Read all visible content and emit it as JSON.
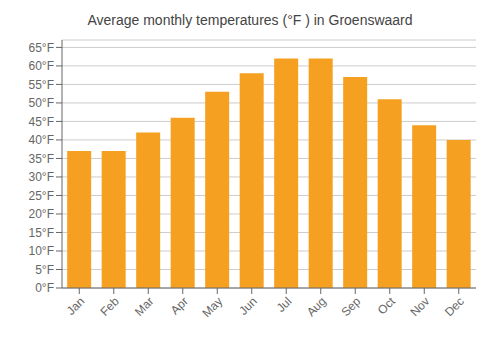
{
  "chart_data": {
    "type": "bar",
    "title": "Average monthly temperatures (°F ) in Groenswaard",
    "categories": [
      "Jan",
      "Feb",
      "Mar",
      "Apr",
      "May",
      "Jun",
      "Jul",
      "Aug",
      "Sep",
      "Oct",
      "Nov",
      "Dec"
    ],
    "values": [
      37,
      37,
      42,
      46,
      53,
      58,
      62,
      62,
      57,
      51,
      44,
      40
    ],
    "color": "#F5A020",
    "ylim": [
      0,
      67
    ],
    "yticks": [
      {
        "value": 0,
        "label": "0°F"
      },
      {
        "value": 5,
        "label": "5°F"
      },
      {
        "value": 10,
        "label": "10°F"
      },
      {
        "value": 15,
        "label": "15°F"
      },
      {
        "value": 20,
        "label": "20°F"
      },
      {
        "value": 25,
        "label": "25°F"
      },
      {
        "value": 30,
        "label": "30°F"
      },
      {
        "value": 35,
        "label": "35°F"
      },
      {
        "value": 40,
        "label": "40°F"
      },
      {
        "value": 45,
        "label": "45°F"
      },
      {
        "value": 50,
        "label": "50°F"
      },
      {
        "value": 55,
        "label": "55°F"
      },
      {
        "value": 60,
        "label": "60°F"
      },
      {
        "value": 65,
        "label": "65°F"
      }
    ],
    "grid": true
  }
}
